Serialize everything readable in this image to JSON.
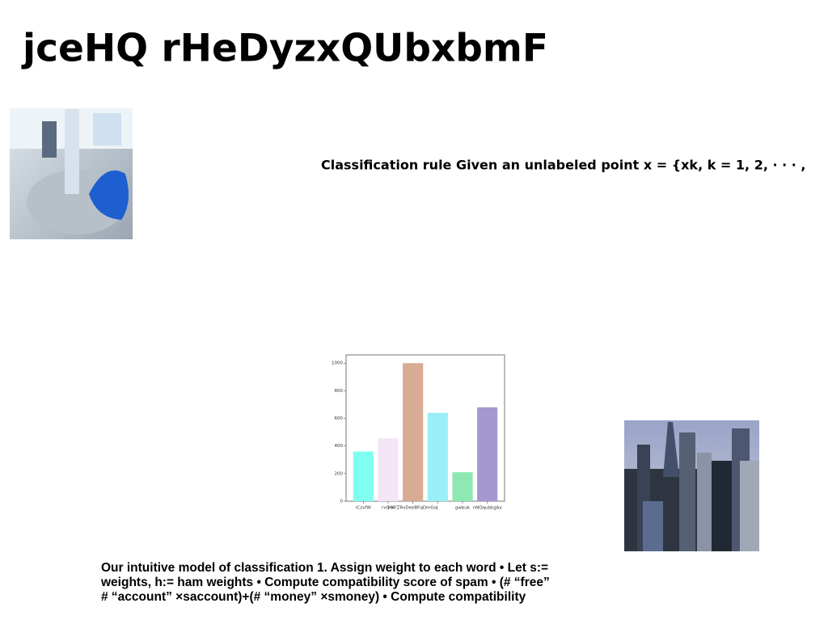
{
  "title": "jceHQ rHeDyzxQUbxbmF",
  "rule_text": "Classification rule Given an unlabeled point x = {xk, k = 1, 2, · · · ,",
  "paragraph": [
    "Our intuitive model of classification 1. Assign weight to each word • Let s:=",
    "weights, h:= ham weights • Compute compatibility score of spam • (# “free”",
    "# “account” ×saccount)+(# “money” ×smoney) • Compute compatibility"
  ],
  "chart_data": {
    "type": "bar",
    "categories": [
      "iCzvfW",
      "rvQ w",
      "HKYZRvDeeBFqDmGoJ",
      null,
      "gwbuk",
      "nNOqubkgAx"
    ],
    "values": [
      360,
      455,
      1000,
      640,
      210,
      680
    ],
    "colors": [
      "#7ffff0",
      "#f3e5f5",
      "#d9ab94",
      "#9aeef5",
      "#8ee8b4",
      "#a598d0"
    ],
    "ylim": [
      0,
      1060
    ],
    "yticks": [
      0,
      200,
      400,
      600,
      800,
      1000
    ],
    "grid": false
  }
}
